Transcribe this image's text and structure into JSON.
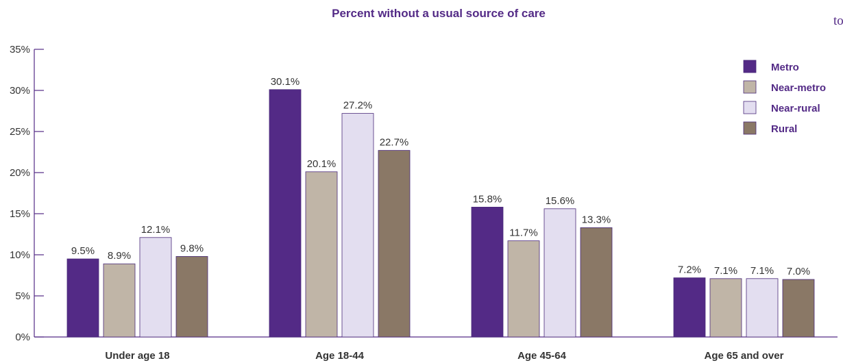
{
  "corner_text": "to",
  "chart_data": {
    "type": "bar",
    "title": "Percent without a usual source of care",
    "categories": [
      "Under age 18",
      "Age 18-44",
      "Age 45-64",
      "Age 65 and over"
    ],
    "series": [
      {
        "name": "Metro",
        "values": [
          9.5,
          30.1,
          15.8,
          7.2
        ],
        "labels": [
          "9.5%",
          "30.1%",
          "15.8%",
          "7.2%"
        ],
        "color": "#532a86"
      },
      {
        "name": "Near-metro",
        "values": [
          8.9,
          20.1,
          11.7,
          7.1
        ],
        "labels": [
          "8.9%",
          "20.1%",
          "11.7%",
          "7.1%"
        ],
        "color": "#c0b5a7"
      },
      {
        "name": "Near-rural",
        "values": [
          12.1,
          27.2,
          15.6,
          7.1
        ],
        "labels": [
          "12.1%",
          "27.2%",
          "15.6%",
          "7.1%"
        ],
        "color": "#e3def0"
      },
      {
        "name": "Rural",
        "values": [
          9.8,
          22.7,
          13.3,
          7.0
        ],
        "labels": [
          "9.8%",
          "22.7%",
          "13.3%",
          "7.0%"
        ],
        "color": "#8a7866"
      }
    ],
    "ylim": [
      0,
      35
    ],
    "yticks": [
      0,
      5,
      10,
      15,
      20,
      25,
      30,
      35
    ],
    "ytick_labels": [
      "0%",
      "5%",
      "10%",
      "15%",
      "20%",
      "25%",
      "30%",
      "35%"
    ],
    "grid": false,
    "legend_position": "top-right",
    "colors": {
      "title": "#532a86",
      "axis": "#532a86",
      "text": "#333333",
      "bar_stroke": "#4a2a7a"
    }
  }
}
